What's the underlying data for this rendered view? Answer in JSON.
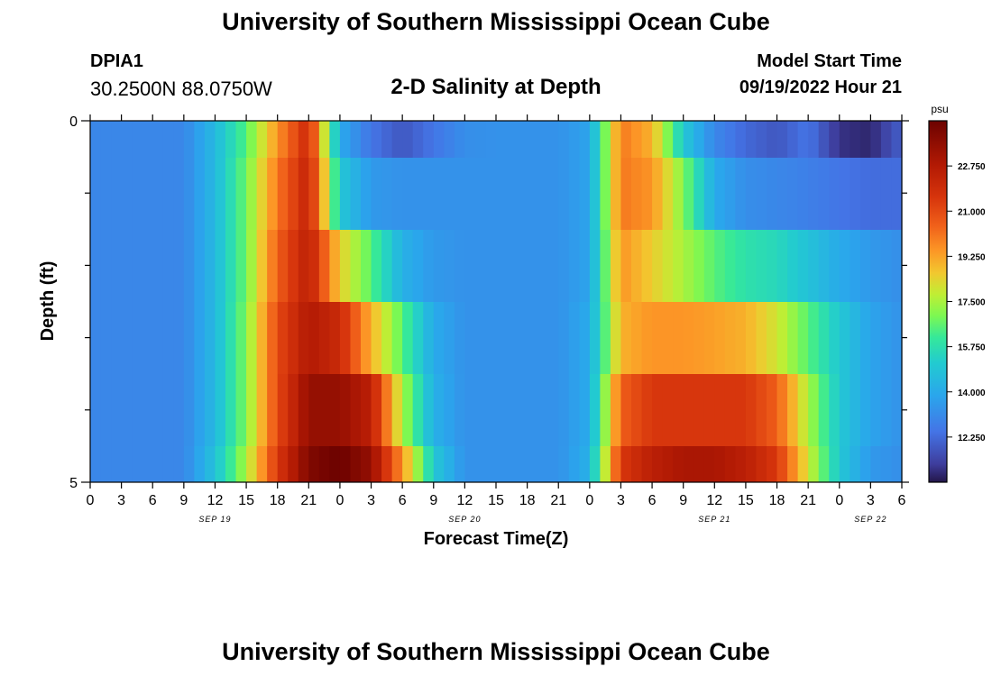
{
  "header": {
    "title": "University of Southern Mississippi Ocean Cube",
    "station": "DPIA1",
    "latlon": "30.2500N  88.0750W",
    "plot_title": "2-D Salinity at Depth",
    "model_start_label": "Model Start Time",
    "model_start_value": "09/19/2022 Hour 21"
  },
  "footer": {
    "title": "University of Southern Mississippi Ocean Cube"
  },
  "chart_data": {
    "type": "heatmap",
    "title": "2-D Salinity at Depth",
    "xlabel": "Forecast Time(Z)",
    "ylabel": "Depth (ft)",
    "x_tick_labels": [
      "0",
      "3",
      "6",
      "9",
      "12",
      "15",
      "18",
      "21",
      "0",
      "3",
      "6",
      "9",
      "12",
      "15",
      "18",
      "21",
      "0",
      "3",
      "6",
      "9",
      "12",
      "15",
      "18",
      "21",
      "0",
      "3",
      "6"
    ],
    "date_labels": [
      {
        "label": "SEP 19",
        "tick_index": 4
      },
      {
        "label": "SEP 20",
        "tick_index": 12
      },
      {
        "label": "SEP 21",
        "tick_index": 20
      },
      {
        "label": "SEP 22",
        "tick_index": 25
      }
    ],
    "y_tick_labels": [
      "0",
      "5"
    ],
    "ylim": [
      0,
      5
    ],
    "colorbar": {
      "unit": "psu",
      "range": [
        10.5,
        24.5
      ],
      "tick_values": [
        12.25,
        14.0,
        15.75,
        17.5,
        19.25,
        21.0,
        22.75
      ],
      "tick_labels": [
        "12.250",
        "14.000",
        "15.750",
        "17.500",
        "19.250",
        "21.000",
        "22.750"
      ]
    },
    "hours": [
      0,
      9,
      12,
      15,
      18,
      21,
      24,
      27,
      30,
      33,
      36,
      39,
      42,
      45,
      48,
      51,
      54,
      57,
      60,
      63,
      66,
      69,
      72,
      75,
      78
    ],
    "layers": [
      {
        "depth_label": "0.0-0.5",
        "values": [
          13.0,
          13.0,
          14.5,
          16.5,
          19.5,
          22.0,
          14.0,
          12.5,
          11.8,
          12.5,
          13.2,
          13.3,
          13.3,
          13.3,
          13.8,
          20.0,
          19.0,
          15.0,
          13.0,
          12.2,
          11.8,
          12.5,
          11.0,
          10.8,
          12.0
        ]
      },
      {
        "depth_label": "0.5-1.5",
        "values": [
          13.0,
          13.0,
          14.5,
          16.8,
          20.0,
          22.3,
          15.0,
          13.5,
          13.3,
          13.3,
          13.3,
          13.3,
          13.3,
          13.3,
          13.8,
          20.0,
          19.5,
          17.0,
          14.0,
          13.2,
          13.0,
          12.8,
          12.5,
          12.3,
          12.3
        ]
      },
      {
        "depth_label": "1.5-2.5",
        "values": [
          13.0,
          13.0,
          14.5,
          16.8,
          20.5,
          22.5,
          18.5,
          16.5,
          14.2,
          13.5,
          13.3,
          13.3,
          13.3,
          13.3,
          13.8,
          19.5,
          18.5,
          17.5,
          16.5,
          15.8,
          15.5,
          14.8,
          14.0,
          13.5,
          13.2
        ]
      },
      {
        "depth_label": "2.5-3.5",
        "values": [
          13.0,
          13.0,
          14.5,
          17.0,
          21.0,
          22.8,
          22.0,
          19.0,
          16.5,
          14.0,
          13.3,
          13.3,
          13.3,
          13.3,
          14.0,
          19.0,
          19.5,
          19.5,
          19.3,
          19.0,
          18.0,
          16.5,
          15.0,
          13.8,
          13.3
        ]
      },
      {
        "depth_label": "3.5-4.5",
        "values": [
          13.0,
          13.0,
          14.5,
          17.0,
          21.0,
          23.5,
          23.5,
          22.5,
          17.5,
          14.2,
          13.3,
          13.3,
          13.3,
          13.3,
          14.0,
          20.5,
          21.5,
          21.5,
          21.5,
          21.5,
          20.5,
          17.5,
          15.0,
          13.8,
          13.3
        ]
      },
      {
        "depth_label": "4.5-5.0",
        "values": [
          13.0,
          13.0,
          14.8,
          17.5,
          21.5,
          24.0,
          24.5,
          23.5,
          19.5,
          15.0,
          13.3,
          13.3,
          13.3,
          13.3,
          14.2,
          21.5,
          22.5,
          23.0,
          23.0,
          22.5,
          21.5,
          18.0,
          15.0,
          13.5,
          13.2
        ]
      }
    ]
  }
}
